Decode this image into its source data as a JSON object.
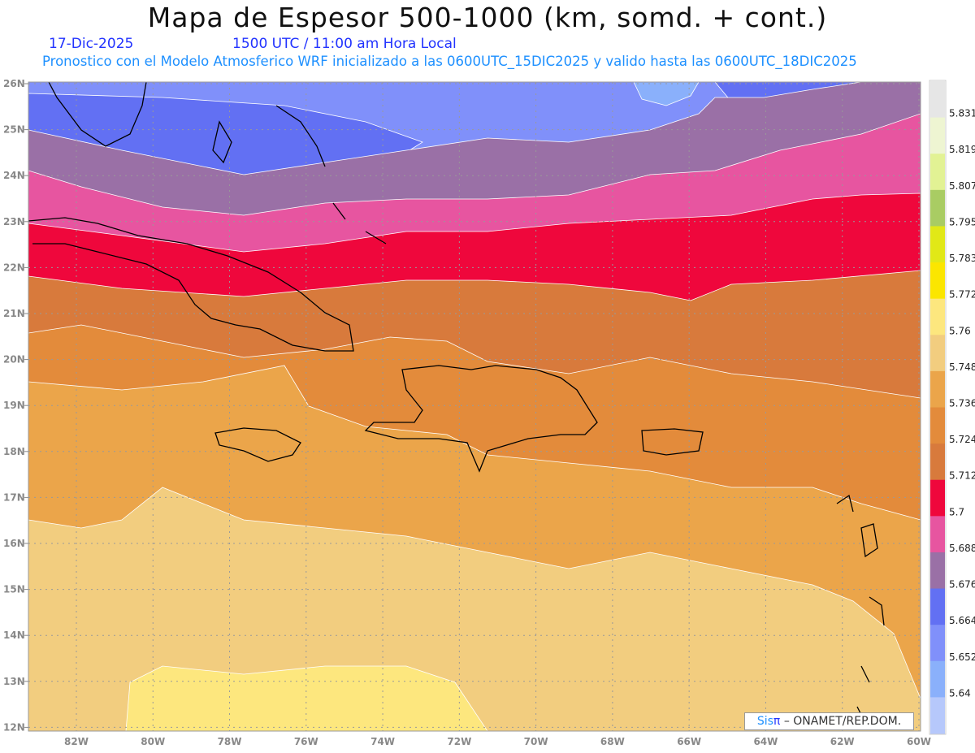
{
  "header": {
    "title": "Mapa de Espesor 500-1000 (km, somd. + cont.)",
    "date": "17-Dic-2025",
    "time": "1500 UTC / 11:00 am Hora Local",
    "subtitle": "Pronostico con el Modelo Atmosferico WRF inicializado a las 0600UTC_15DIC2025 y valido hasta las  0600UTC_18DIC2025"
  },
  "map": {
    "lat_labels": [
      "26N",
      "25N",
      "24N",
      "23N",
      "22N",
      "21N",
      "20N",
      "19N",
      "18N",
      "17N",
      "16N",
      "15N",
      "14N",
      "13N",
      "12N"
    ],
    "lon_labels": [
      "82W",
      "80W",
      "78W",
      "76W",
      "74W",
      "72W",
      "70W",
      "68W",
      "66W",
      "64W",
      "62W",
      "60W"
    ]
  },
  "colorbar": {
    "colors": [
      "#e6e6e6",
      "#eef5d2",
      "#e2f294",
      "#a9cc63",
      "#e1e817",
      "#fbe600",
      "#fde77e",
      "#f2cd7f",
      "#eba54a",
      "#e38b3b",
      "#d87a3c",
      "#ef073c",
      "#e755a0",
      "#9a70a6",
      "#6270f3",
      "#8090fa",
      "#8ab0fb",
      "#b6c8fb"
    ],
    "labels": [
      "5.831",
      "5.819",
      "5.807",
      "5.795",
      "5.783",
      "5.772",
      "5.76",
      "5.748",
      "5.736",
      "5.724",
      "5.712",
      "5.7",
      "5.688",
      "5.676",
      "5.664",
      "5.652",
      "5.64"
    ]
  },
  "credit": {
    "brand": "Sis",
    "pi": "π",
    "org": "– ONAMET/REP.DOM."
  }
}
